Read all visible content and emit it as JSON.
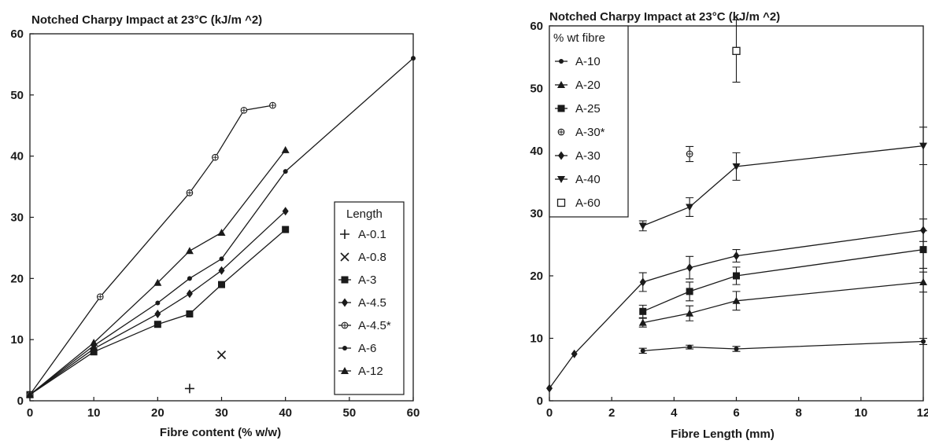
{
  "chart_data": [
    {
      "type": "line",
      "title": "Notched Charpy Impact at 23°C (kJ/m ^2)",
      "xlabel": "Fibre content (% w/w)",
      "ylabel": "",
      "xlim": [
        0,
        60
      ],
      "ylim": [
        0,
        60
      ],
      "x_ticks": [
        "0",
        "10",
        "20",
        "30",
        "40",
        "50",
        "60"
      ],
      "y_ticks": [
        "0",
        "10",
        "20",
        "30",
        "40",
        "50",
        "60"
      ],
      "grid": false,
      "legend_title": "Length",
      "legend_position": "bottom-right",
      "series": [
        {
          "name": "A-0.1",
          "marker": "plus",
          "line": false,
          "x": [
            25
          ],
          "y": [
            2
          ]
        },
        {
          "name": "A-0.8",
          "marker": "cross",
          "line": false,
          "x": [
            30
          ],
          "y": [
            7.5
          ]
        },
        {
          "name": "A-3",
          "marker": "square",
          "line": true,
          "x": [
            0,
            10,
            20,
            25,
            30,
            40
          ],
          "y": [
            1,
            8,
            12.5,
            14.2,
            19,
            28
          ]
        },
        {
          "name": "A-4.5",
          "marker": "diamond",
          "line": true,
          "x": [
            0,
            10,
            20,
            25,
            30,
            40
          ],
          "y": [
            1,
            8.5,
            14.2,
            17.5,
            21.3,
            31
          ]
        },
        {
          "name": "A-4.5*",
          "marker": "open-star",
          "line": true,
          "x": [
            0,
            11,
            25,
            29,
            33.5,
            38
          ],
          "y": [
            1,
            17,
            34,
            39.8,
            47.5,
            48.3
          ]
        },
        {
          "name": "A-6",
          "marker": "circle",
          "line": true,
          "x": [
            0,
            10,
            20,
            25,
            30,
            40,
            60
          ],
          "y": [
            1,
            9,
            16,
            20,
            23.2,
            37.5,
            56
          ]
        },
        {
          "name": "A-12",
          "marker": "triangle",
          "line": true,
          "x": [
            0,
            10,
            20,
            25,
            30,
            40
          ],
          "y": [
            1,
            9.5,
            19.3,
            24.5,
            27.5,
            41
          ]
        }
      ]
    },
    {
      "type": "line",
      "title": "Notched Charpy Impact at 23°C (kJ/m ^2)",
      "xlabel": "Fibre Length (mm)",
      "ylabel": "",
      "xlim": [
        0,
        12
      ],
      "ylim": [
        0,
        60
      ],
      "x_ticks": [
        "0",
        "2",
        "4",
        "6",
        "8",
        "10",
        "12"
      ],
      "y_ticks": [
        "0",
        "10",
        "20",
        "30",
        "40",
        "50",
        "60"
      ],
      "grid": false,
      "legend_title": "% wt fibre",
      "legend_position": "top-left",
      "series": [
        {
          "name": "A-10",
          "marker": "circle",
          "line": true,
          "x": [
            3,
            4.5,
            6,
            12
          ],
          "y": [
            8,
            8.6,
            8.3,
            9.5
          ],
          "err": [
            0.4,
            0.3,
            0.4,
            0.5
          ]
        },
        {
          "name": "A-20",
          "marker": "triangle",
          "line": true,
          "x": [
            3,
            4.5,
            6,
            12
          ],
          "y": [
            12.5,
            14,
            16,
            19
          ],
          "err": [
            0.7,
            1.2,
            1.5,
            1.6
          ]
        },
        {
          "name": "A-25",
          "marker": "square",
          "line": true,
          "x": [
            3,
            4.5,
            6,
            12
          ],
          "y": [
            14.3,
            17.5,
            20,
            24.2
          ],
          "err": [
            1,
            1.5,
            1.4,
            3
          ]
        },
        {
          "name": "A-30*",
          "marker": "open-star",
          "line": false,
          "x": [
            4.5
          ],
          "y": [
            39.5
          ],
          "err": [
            1.2
          ]
        },
        {
          "name": "A-30",
          "marker": "diamond",
          "line": true,
          "x": [
            0,
            0.8,
            3,
            4.5,
            6,
            12
          ],
          "y": [
            2,
            7.5,
            19,
            21.3,
            23.2,
            27.3
          ],
          "err": [
            0,
            0,
            1.5,
            1.8,
            1,
            1.8
          ]
        },
        {
          "name": "A-40",
          "marker": "down-triangle",
          "line": true,
          "x": [
            3,
            4.5,
            6,
            12
          ],
          "y": [
            28,
            31,
            37.5,
            40.8
          ],
          "err": [
            0.8,
            1.5,
            2.2,
            3
          ]
        },
        {
          "name": "A-60",
          "marker": "open-square",
          "line": false,
          "x": [
            6
          ],
          "y": [
            56
          ],
          "err": [
            5
          ]
        }
      ]
    }
  ]
}
